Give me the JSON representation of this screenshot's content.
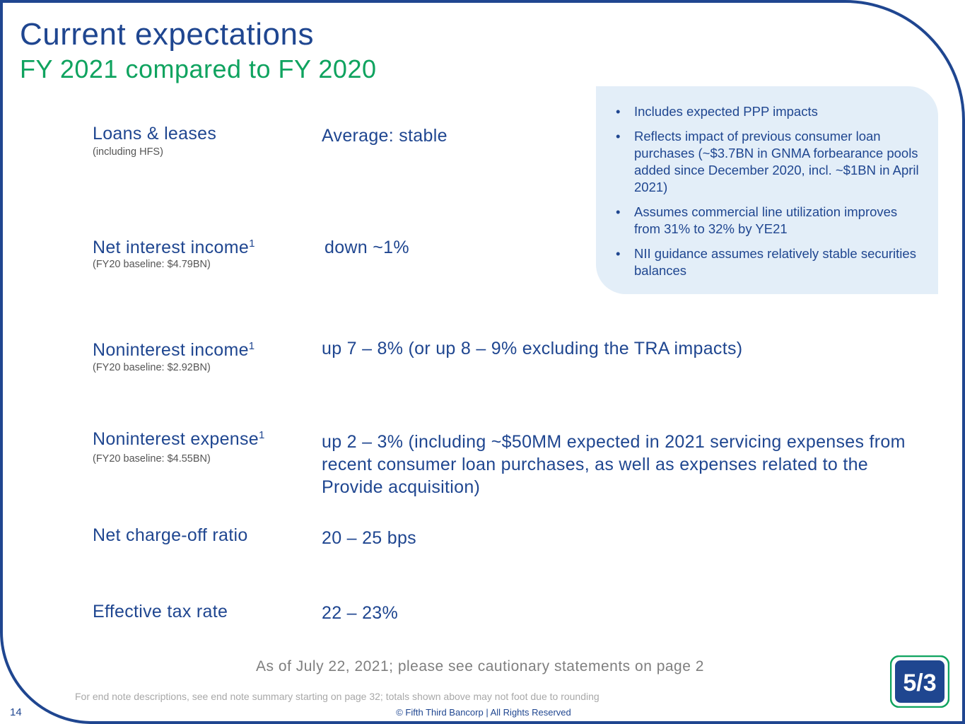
{
  "header": {
    "title": "Current expectations",
    "subtitle": "FY 2021 compared to FY 2020"
  },
  "rows": [
    {
      "label": "Loans & leases",
      "sup": "",
      "sublabel": "(including HFS)",
      "value": "Average: stable"
    },
    {
      "label": "Net interest income",
      "sup": "1",
      "sublabel": "(FY20 baseline: $4.79BN)",
      "value": "down ~1%"
    },
    {
      "label": "Noninterest income",
      "sup": "1",
      "sublabel": "(FY20 baseline: $2.92BN)",
      "value": "up 7 – 8% (or up 8 – 9% excluding the TRA impacts)"
    },
    {
      "label": "Noninterest expense",
      "sup": "1",
      "sublabel": "(FY20 baseline: $4.55BN)",
      "value": "up 2 – 3% (including ~$50MM expected in 2021 servicing expenses from recent consumer loan purchases, as well as expenses related to the Provide acquisition)"
    },
    {
      "label": "Net charge-off ratio",
      "sup": "",
      "sublabel": "",
      "value": "20 – 25 bps"
    },
    {
      "label": "Effective tax rate",
      "sup": "",
      "sublabel": "",
      "value": "22 – 23%"
    }
  ],
  "notes": [
    "Includes expected PPP impacts",
    "Reflects impact of previous consumer loan purchases (~$3.7BN in GNMA forbearance pools added since December 2020, incl. ~$1BN in April 2021)",
    "Assumes commercial line utilization improves from 31% to 32% by YE21",
    "NII guidance assumes relatively stable securities balances"
  ],
  "footer": {
    "as_of": "As of July 22, 2021; please see cautionary statements on page 2",
    "footnote": "For end note descriptions, see end note summary starting on page 32; totals shown above may not foot due to rounding",
    "page_number": "14",
    "copyright": "© Fifth Third Bancorp | All Rights Reserved"
  },
  "logo": {
    "text": "5/3",
    "name": "fifth-third-logo"
  },
  "colors": {
    "primary": "#1f4690",
    "accent": "#0fa35f",
    "box": "#e3eef8",
    "muted": "#7f7f7f"
  }
}
